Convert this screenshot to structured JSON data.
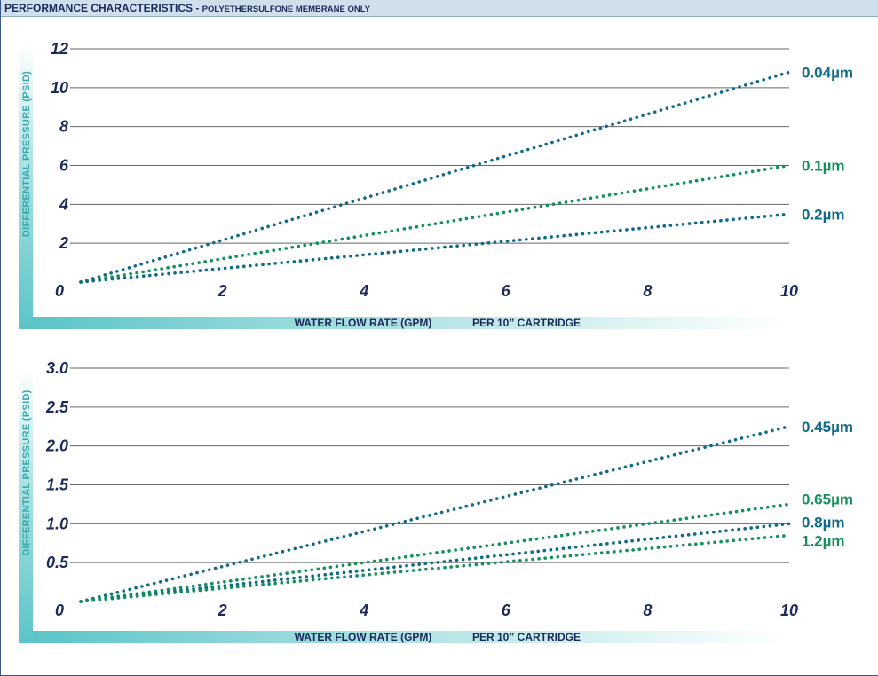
{
  "header": {
    "title": "PERFORMANCE CHARACTERISTICS - ",
    "subtitle": "POLYETHERSULFONE MEMBRANE ONLY"
  },
  "colors": {
    "blue": "#0f6a8c",
    "green": "#14915a",
    "grid": "#666666",
    "band": "#5bc4c8"
  },
  "chart_data": [
    {
      "type": "line",
      "ylabel": "DIFFERENTIAL PRESSURE (PSID)",
      "xlabel": "WATER FLOW RATE (GPM)",
      "xlabel2": "PER 10” CARTRIDGE",
      "xlim": [
        0,
        10
      ],
      "ylim": [
        0,
        12
      ],
      "x_ticks": [
        2,
        4,
        6,
        8,
        10
      ],
      "y_ticks": [
        0,
        2,
        4,
        6,
        8,
        10,
        12
      ],
      "x_tick_labels": [
        "2",
        "4",
        "6",
        "8",
        "10"
      ],
      "y_tick_labels": [
        "0",
        "2",
        "4",
        "6",
        "8",
        "10",
        "12"
      ],
      "origin_label": "0",
      "series": [
        {
          "name": "0.04µm",
          "color": "#0f6a8c",
          "x": [
            0,
            10
          ],
          "y": [
            0,
            10.8
          ]
        },
        {
          "name": "0.1µm",
          "color": "#14915a",
          "x": [
            0,
            10
          ],
          "y": [
            0,
            6.0
          ]
        },
        {
          "name": "0.2µm",
          "color": "#0f6a8c",
          "x": [
            0,
            10
          ],
          "y": [
            0,
            3.5
          ]
        }
      ]
    },
    {
      "type": "line",
      "ylabel": "DIFFERENTIAL PRESSURE (PSID)",
      "xlabel": "WATER FLOW RATE (GPM)",
      "xlabel2": "PER 10” CARTRIDGE",
      "xlim": [
        0,
        10
      ],
      "ylim": [
        0,
        3.0
      ],
      "x_ticks": [
        2,
        4,
        6,
        8,
        10
      ],
      "y_ticks": [
        0,
        0.5,
        1.0,
        1.5,
        2.0,
        2.5,
        3.0
      ],
      "x_tick_labels": [
        "2",
        "4",
        "6",
        "8",
        "10"
      ],
      "y_tick_labels": [
        "0",
        "0.5",
        "1.0",
        "1.5",
        "2.0",
        "2.5",
        "3.0"
      ],
      "origin_label": "0",
      "series": [
        {
          "name": "0.45µm",
          "color": "#0f6a8c",
          "x": [
            0,
            10
          ],
          "y": [
            0,
            2.25
          ]
        },
        {
          "name": "0.65µm",
          "color": "#14915a",
          "x": [
            0,
            10
          ],
          "y": [
            0,
            1.25
          ]
        },
        {
          "name": "0.8µm",
          "color": "#0f6a8c",
          "x": [
            0,
            10
          ],
          "y": [
            0,
            1.0
          ]
        },
        {
          "name": "1.2µm",
          "color": "#14915a",
          "x": [
            0,
            10
          ],
          "y": [
            0,
            0.85
          ]
        }
      ]
    }
  ]
}
